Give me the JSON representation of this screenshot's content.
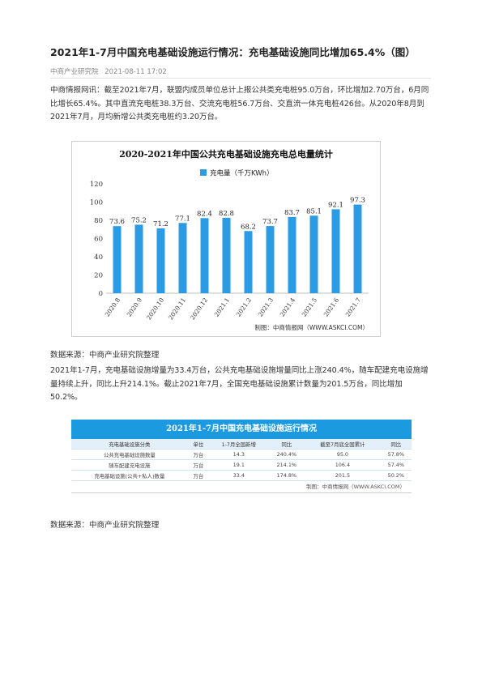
{
  "article": {
    "title": "2021年1-7月中国充电基础设施运行情况：充电基础设施同比增加65.4%（图）",
    "source": "中商产业研究院",
    "date": "2021-08-11 17:02",
    "paragraph1": "中商情报网讯：截至2021年7月，联盟内成员单位总计上报公共类充电桩95.0万台，环比增加2.70万台，6月同比增长65.4%。其中直流充电桩38.3万台、交流充电桩56.7万台、交直流一体充电桩426台。从2020年8月到2021年7月，月均新增公共类充电桩约3.20万台。",
    "data_source_1": "数据来源：中商产业研究院整理",
    "paragraph2": "2021年1-7月，充电基础设施增量为33.4万台，公共充电基础设施增量同比上涨240.4%，随车配建充电设施增量持续上升，同比上升214.1%。截止2021年7月，全国充电基础设施累计数量为201.5万台，同比增加50.2%。",
    "data_source_2": "数据来源：中商产业研究院整理"
  },
  "chart_data": {
    "type": "bar",
    "title": "2020-2021年中国公共充电基础设施充电总电量统计",
    "legend": "充电量（千万KWh）",
    "categories": [
      "2020.8",
      "2020.9",
      "2020.10",
      "2020.11",
      "2020.12",
      "2021.1",
      "2021.2",
      "2021.3",
      "2021.4",
      "2021.5",
      "2021.6",
      "2021.7"
    ],
    "values": [
      73.6,
      75.2,
      71.2,
      77.1,
      82.4,
      82.8,
      68.2,
      73.7,
      83.7,
      85.1,
      92.1,
      97.3
    ],
    "value_labels": [
      "73.6",
      "75.2",
      "71.2",
      "77.1",
      "82.4",
      "82.8",
      "68.2",
      "73.7",
      "83.7",
      "85.1",
      "92.1",
      "97.3"
    ],
    "yticks": [
      "0",
      "20",
      "40",
      "60",
      "80",
      "100",
      "120"
    ],
    "ylim": [
      0,
      120
    ],
    "credit": "制图：中商情报网（WWW.ASKCI.COM）",
    "bar_color": "#2b9be3"
  },
  "table": {
    "title": "2021年1-7月中国充电基础设施运行情况",
    "headers": [
      "充电基础设施分类",
      "单位",
      "1-7月全国新增",
      "同比",
      "截至7月底全国累计",
      "同比"
    ],
    "rows": [
      [
        "公共充电基础设施数量",
        "万台",
        "14.3",
        "240.4%",
        "95.0",
        "57.8%"
      ],
      [
        "随车配建充电设施",
        "万台",
        "19.1",
        "214.1%",
        "106.4",
        "57.4%"
      ],
      [
        "充电基础设施(公共+私人)数量",
        "万台",
        "33.4",
        "174.8%",
        "201.5",
        "50.2%"
      ]
    ],
    "credit": "制图：中商情报网（WWW.ASKCI.COM）",
    "header_color": "#1c9adf"
  }
}
